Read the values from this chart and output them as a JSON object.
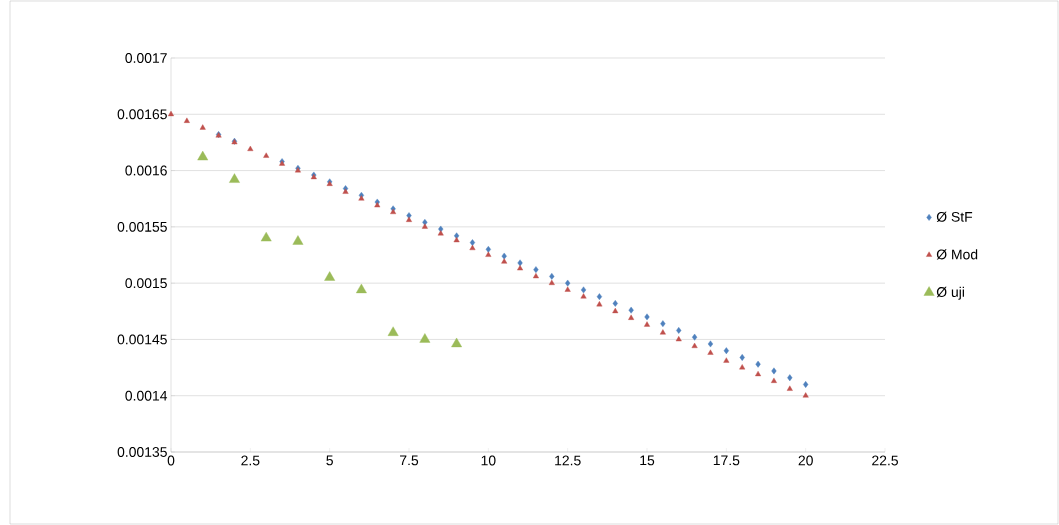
{
  "chart_data": {
    "type": "scatter",
    "x": [
      0,
      0.5,
      1,
      1.5,
      2,
      2.5,
      3,
      3.5,
      4,
      4.5,
      5,
      5.5,
      6,
      6.5,
      7,
      7.5,
      8,
      8.5,
      9,
      9.5,
      10,
      10.5,
      11,
      11.5,
      12,
      12.5,
      13,
      13.5,
      14,
      14.5,
      15,
      15.5,
      16,
      16.5,
      17,
      17.5,
      18,
      18.5,
      19,
      19.5,
      20
    ],
    "series": [
      {
        "name": "Ø StF",
        "color": "#4f81bd",
        "marker": "diamond",
        "values": [
          null,
          null,
          null,
          0.001632,
          0.001626,
          null,
          null,
          0.001608,
          0.001602,
          0.001596,
          0.00159,
          0.001584,
          0.001578,
          0.001572,
          0.001566,
          0.00156,
          0.001554,
          0.001548,
          0.001542,
          0.001536,
          0.00153,
          0.001524,
          0.001518,
          0.001512,
          0.001506,
          0.0015,
          0.001494,
          0.001488,
          0.001482,
          0.001476,
          0.00147,
          0.001464,
          0.001458,
          0.001452,
          0.001446,
          0.00144,
          0.001434,
          0.001428,
          0.001422,
          0.001416,
          0.00141
        ]
      },
      {
        "name": "Ø Mod",
        "color": "#c0504d",
        "marker": "triangle",
        "values": [
          0.00165,
          0.001644,
          0.001638,
          0.001631,
          0.001625,
          0.001619,
          0.001613,
          0.001606,
          0.0016,
          0.001594,
          0.001588,
          0.001581,
          0.001575,
          0.001569,
          0.001563,
          0.001556,
          0.00155,
          0.001544,
          0.001538,
          0.001531,
          0.001525,
          0.001519,
          0.001513,
          0.001506,
          0.0015,
          0.001494,
          0.001488,
          0.001481,
          0.001475,
          0.001469,
          0.001463,
          0.001456,
          0.00145,
          0.001444,
          0.001438,
          0.001431,
          0.001425,
          0.001419,
          0.001413,
          0.001406,
          0.0014
        ]
      },
      {
        "name": "Ø uji",
        "color": "#9bbb59",
        "marker": "triangle",
        "x": [
          1,
          2,
          3,
          4,
          5,
          6,
          7,
          8,
          9
        ],
        "values": [
          0.001612,
          0.001592,
          0.00154,
          0.001537,
          0.001505,
          0.001494,
          0.001456,
          0.00145,
          0.001446
        ]
      }
    ],
    "xlim": [
      0,
      22.5
    ],
    "xticks": [
      0,
      2.5,
      5,
      7.5,
      10,
      12.5,
      15,
      17.5,
      20,
      22.5
    ],
    "ylim": [
      0.00135,
      0.0017
    ],
    "yticks": [
      0.00135,
      0.0014,
      0.00145,
      0.0015,
      0.00155,
      0.0016,
      0.00165,
      0.0017
    ],
    "grid": "y",
    "legend": "right"
  }
}
